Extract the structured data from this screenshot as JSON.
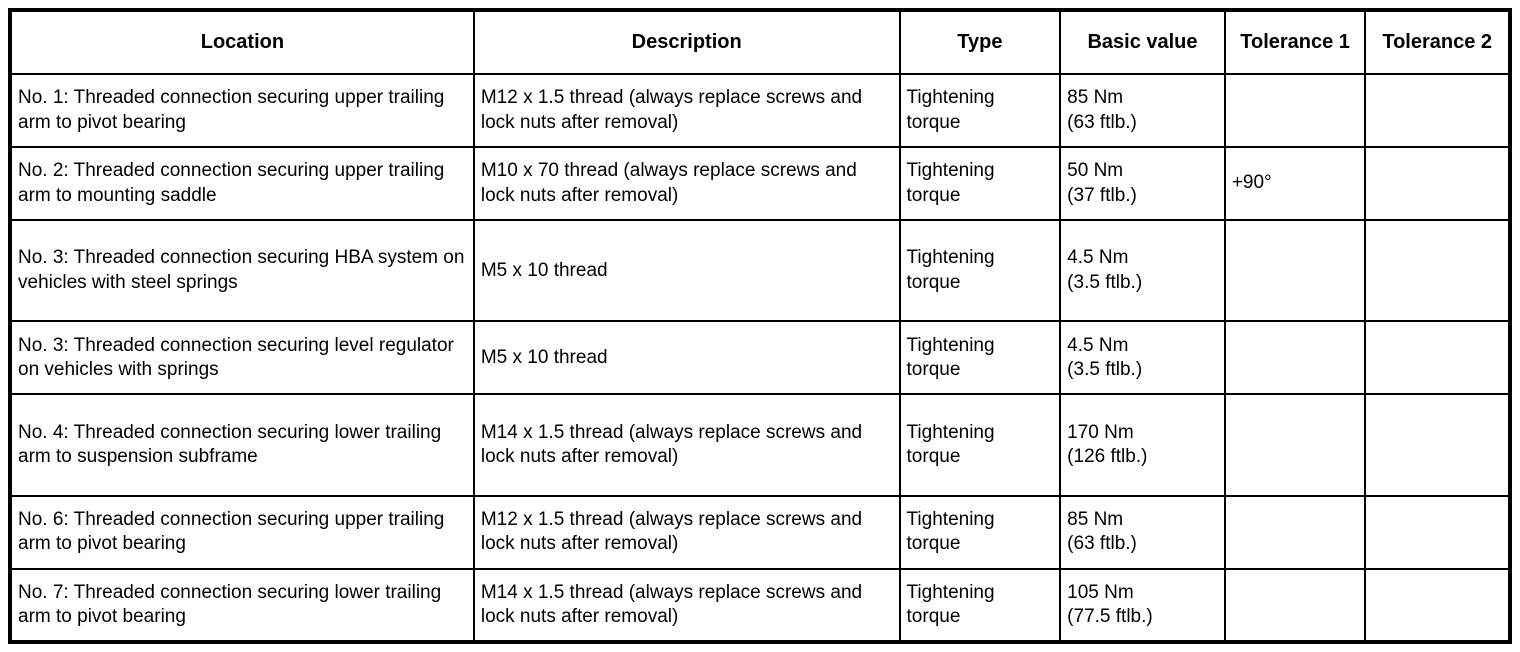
{
  "table": {
    "columns": [
      "Location",
      "Description",
      "Type",
      "Basic value",
      "Tolerance 1",
      "Tolerance 2"
    ],
    "rows": [
      {
        "location": "No. 1: Threaded connection securing upper trailing arm to pivot bearing",
        "description": "M12 x 1.5 thread (always replace screws and lock nuts after removal)",
        "type": "Tightening torque",
        "basic_value": "85 Nm\n(63 ftlb.)",
        "tolerance1": "",
        "tolerance2": ""
      },
      {
        "location": "No. 2: Threaded connection securing upper trailing arm to mounting saddle",
        "description": "M10 x 70 thread (always replace screws and lock nuts after removal)",
        "type": "Tightening torque",
        "basic_value": "50 Nm\n(37 ftlb.)",
        "tolerance1": "+90°",
        "tolerance2": ""
      },
      {
        "location": "No. 3: Threaded connection securing HBA system on vehicles with steel springs",
        "description": "M5 x 10 thread",
        "type": "Tightening torque",
        "basic_value": "4.5 Nm\n(3.5 ftlb.)",
        "tolerance1": "",
        "tolerance2": ""
      },
      {
        "location": "No. 3: Threaded connection securing level regulator on vehicles with springs",
        "description": "M5 x 10 thread",
        "type": "Tightening torque",
        "basic_value": "4.5 Nm\n(3.5 ftlb.)",
        "tolerance1": "",
        "tolerance2": ""
      },
      {
        "location": "No. 4: Threaded connection securing lower trailing arm to suspension subframe",
        "description": "M14 x 1.5 thread (always replace screws and lock nuts after removal)",
        "type": "Tightening torque",
        "basic_value": "170 Nm\n(126 ftlb.)",
        "tolerance1": "",
        "tolerance2": ""
      },
      {
        "location": "No. 6: Threaded connection securing upper trailing arm to pivot bearing",
        "description": "M12 x 1.5 thread (always replace screws and lock nuts after removal)",
        "type": "Tightening torque",
        "basic_value": "85 Nm\n(63 ftlb.)",
        "tolerance1": "",
        "tolerance2": ""
      },
      {
        "location": "No. 7: Threaded connection securing lower trailing arm to pivot bearing",
        "description": "M14 x 1.5 thread (always replace screws and lock nuts after removal)",
        "type": "Tightening torque",
        "basic_value": "105 Nm\n(77.5 ftlb.)",
        "tolerance1": "",
        "tolerance2": ""
      }
    ]
  }
}
